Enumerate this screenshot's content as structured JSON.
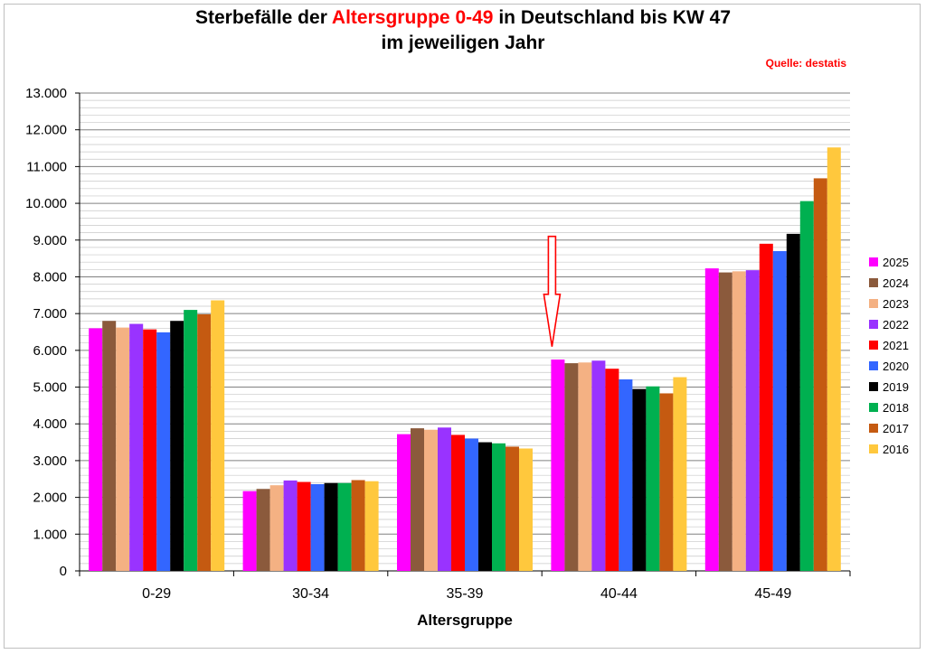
{
  "title": {
    "part1": "Sterbefälle der ",
    "highlight": "Altersgruppe 0-49",
    "part2": " in Deutschland bis KW 47",
    "line2": "im jeweiligen Jahr"
  },
  "source": "Quelle: destatis",
  "chart_data": {
    "type": "bar",
    "xlabel": "Altersgruppe",
    "ylabel": "",
    "ylim": [
      0,
      13000
    ],
    "ytick_step": 1000,
    "minor_grid_step": 200,
    "grid": true,
    "legend_position": "right",
    "yticks": [
      "0",
      "1.000",
      "2.000",
      "3.000",
      "4.000",
      "5.000",
      "6.000",
      "7.000",
      "8.000",
      "9.000",
      "10.000",
      "11.000",
      "12.000",
      "13.000"
    ],
    "categories": [
      "0-29",
      "30-34",
      "35-39",
      "40-44",
      "45-49"
    ],
    "series": [
      {
        "name": "2025",
        "color": "#ff00ff",
        "values": [
          6600,
          2170,
          3720,
          5750,
          8230
        ]
      },
      {
        "name": "2024",
        "color": "#8b5a3c",
        "values": [
          6800,
          2230,
          3880,
          5650,
          8120
        ]
      },
      {
        "name": "2023",
        "color": "#f4b183",
        "values": [
          6620,
          2330,
          3840,
          5670,
          8150
        ]
      },
      {
        "name": "2022",
        "color": "#9933ff",
        "values": [
          6720,
          2460,
          3900,
          5720,
          8180
        ]
      },
      {
        "name": "2021",
        "color": "#ff0000",
        "values": [
          6570,
          2420,
          3700,
          5500,
          8900
        ]
      },
      {
        "name": "2020",
        "color": "#3366ff",
        "values": [
          6490,
          2360,
          3600,
          5210,
          8700
        ]
      },
      {
        "name": "2019",
        "color": "#000000",
        "values": [
          6800,
          2390,
          3500,
          4950,
          9170
        ]
      },
      {
        "name": "2018",
        "color": "#00b050",
        "values": [
          7100,
          2390,
          3470,
          5020,
          10060
        ]
      },
      {
        "name": "2017",
        "color": "#c55a11",
        "values": [
          6980,
          2470,
          3380,
          4830,
          10680
        ]
      },
      {
        "name": "2016",
        "color": "#ffc83d",
        "values": [
          7360,
          2440,
          3330,
          5270,
          11520
        ]
      }
    ],
    "annotation": {
      "type": "arrow-down",
      "category": "40-44",
      "color": "#ff0000",
      "from_value": 9100,
      "to_value": 6100
    }
  }
}
